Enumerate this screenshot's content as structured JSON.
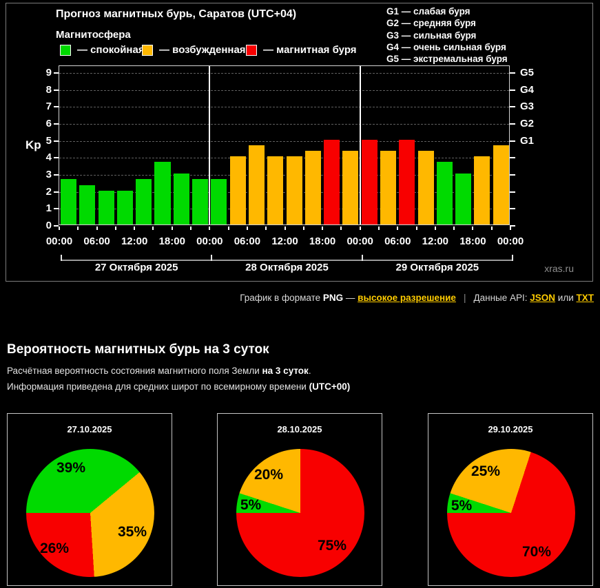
{
  "ui": {
    "colors": {
      "quiet": "#00da00",
      "excited": "#ffb800",
      "storm": "#f80000",
      "link": "#ffcc00"
    },
    "chart_header": {
      "title": "Прогноз магнитных бурь, Саратов (UTC+04)",
      "subtitle": "Магнитосфера",
      "legend": [
        {
          "key": "quiet",
          "label": "— спокойная"
        },
        {
          "key": "excited",
          "label": "— возбужденная"
        },
        {
          "key": "storm",
          "label": "— магнитная буря"
        }
      ],
      "g_scale": [
        "G1 — слабая буря",
        "G2 — средняя буря",
        "G3 — сильная буря",
        "G4 — очень сильная буря",
        "G5 — экстремальная буря"
      ],
      "watermark": "xras.ru"
    },
    "links_row": {
      "png_prefix": "График в формате ",
      "png": "PNG",
      "dash": " — ",
      "hires_link": "высокое разрешение",
      "separator": "|",
      "api_prefix": "Данные API: ",
      "json_link": "JSON",
      "or_text": " или ",
      "txt_link": "TXT"
    },
    "probability_section": {
      "heading": "Вероятность магнитных бурь на 3 суток",
      "line1_normal": "Расчётная вероятность состояния магнитного поля Земли ",
      "line1_bold": "на 3 суток",
      "line1_tail": ".",
      "line2_normal": "Информация приведена для средних широт по всемирному времени ",
      "line2_bold": "(UTC+00)"
    }
  },
  "chart_data": [
    {
      "type": "bar",
      "title": "Прогноз магнитных бурь, Саратов (UTC+04)",
      "ylabel": "Kp",
      "ylim": [
        0,
        9.4
      ],
      "grid": true,
      "y_ticks": [
        0,
        1,
        2,
        3,
        4,
        5,
        6,
        7,
        8,
        9
      ],
      "x_tick_labels": [
        "00:00",
        "06:00",
        "12:00",
        "18:00",
        "00:00",
        "06:00",
        "12:00",
        "18:00",
        "00:00",
        "06:00",
        "12:00",
        "18:00",
        "00:00"
      ],
      "day_labels": [
        "27 Октября 2025",
        "28 Октября 2025",
        "29 Октября 2025"
      ],
      "bars_per_day": 8,
      "values": [
        2.67,
        2.33,
        2,
        2,
        2.67,
        3.67,
        3,
        2.67,
        2.67,
        4,
        4.67,
        4,
        4,
        4.33,
        5,
        4.33,
        5,
        4.33,
        5,
        4.33,
        3.67,
        3,
        4,
        4.67
      ],
      "color_rule": {
        "quiet_if_below": 4,
        "excited_if_below": 5,
        "storm_if_at_or_above": 5
      },
      "right_axis": {
        "labels": [
          "G1",
          "G2",
          "G3",
          "G4",
          "G5"
        ],
        "at_kp": [
          5,
          6,
          7,
          8,
          9
        ]
      },
      "legend": [
        "спокойная",
        "возбужденная",
        "магнитная буря"
      ]
    },
    {
      "type": "pie",
      "title": "27.10.2025",
      "labels": [
        "спокойная",
        "возбужденная",
        "магнитная буря"
      ],
      "values": [
        39,
        35,
        26
      ]
    },
    {
      "type": "pie",
      "title": "28.10.2025",
      "labels": [
        "спокойная",
        "возбужденная",
        "магнитная буря"
      ],
      "values": [
        5,
        20,
        75
      ]
    },
    {
      "type": "pie",
      "title": "29.10.2025",
      "labels": [
        "спокойная",
        "возбужденная",
        "магнитная буря"
      ],
      "values": [
        5,
        25,
        70
      ]
    }
  ]
}
